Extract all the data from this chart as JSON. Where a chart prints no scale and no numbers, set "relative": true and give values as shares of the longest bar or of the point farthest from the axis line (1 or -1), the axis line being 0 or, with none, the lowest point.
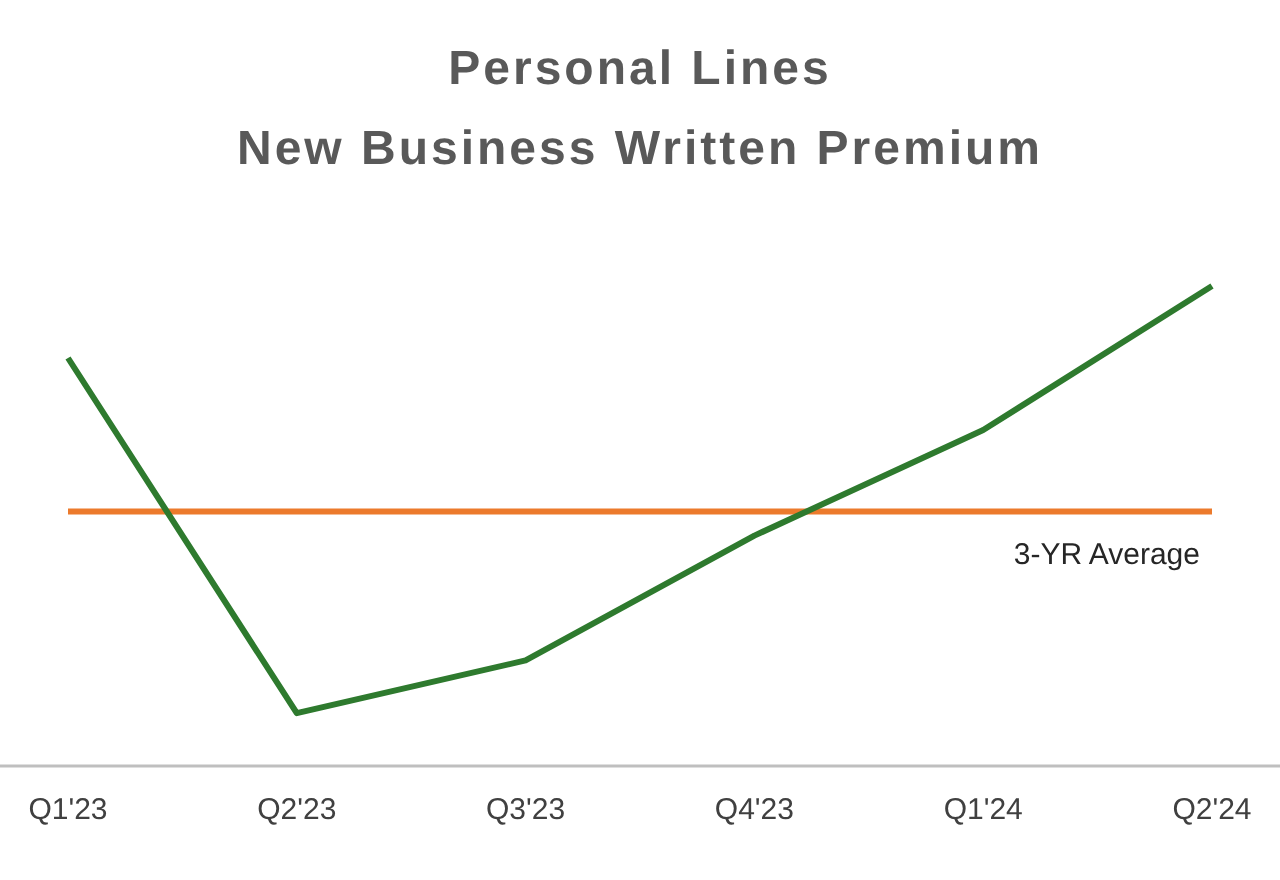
{
  "chart_data": {
    "type": "line",
    "title": "Personal Lines",
    "subtitle": "New Business Written Premium",
    "relative": true,
    "categories": [
      "Q1'23",
      "Q2'23",
      "Q3'23",
      "Q4'23",
      "Q1'24",
      "Q2'24"
    ],
    "series": [
      {
        "color": "#2e7a2e",
        "values": [
          0.85,
          0.11,
          0.22,
          0.48,
          0.7,
          1.0
        ]
      }
    ],
    "ref_lines": [
      {
        "axis": "y",
        "value": 0.53,
        "label": "3-YR Average",
        "color": "#ec7a2c"
      }
    ],
    "marker": "none",
    "line_style": "solid"
  }
}
